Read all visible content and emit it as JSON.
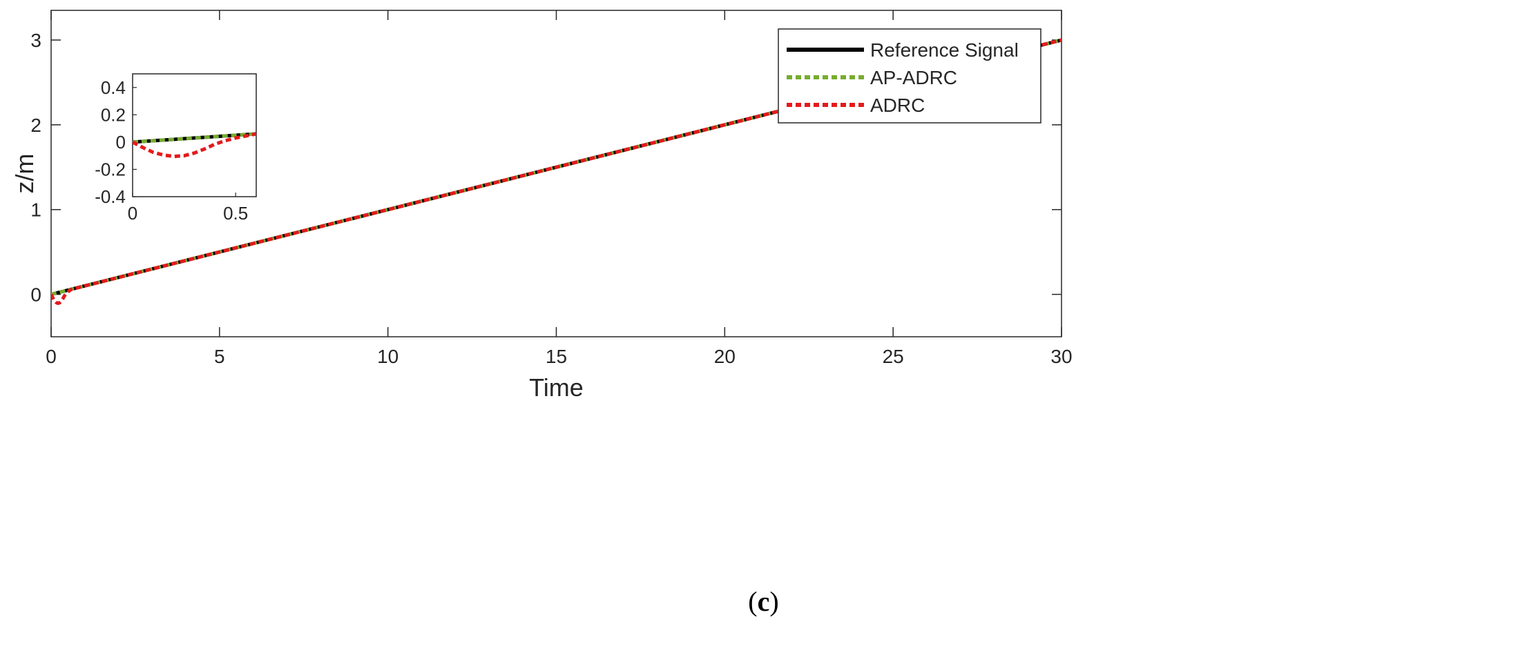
{
  "chart_data": [
    {
      "type": "line",
      "title": "",
      "xlabel": "Time",
      "ylabel": "z/m",
      "xlim": [
        0,
        30
      ],
      "ylim": [
        -0.5,
        3.35
      ],
      "xticks": [
        0,
        5,
        10,
        15,
        20,
        25,
        30
      ],
      "yticks": [
        0,
        1,
        2,
        3
      ],
      "grid": false,
      "legend_position": "top-right",
      "series": [
        {
          "name": "Reference Signal",
          "color": "#000000",
          "style": "solid",
          "x": [
            0,
            30
          ],
          "y": [
            0,
            3
          ]
        },
        {
          "name": "AP-ADRC",
          "color": "#77AC30",
          "style": "dotted",
          "x": [
            0,
            30
          ],
          "y": [
            0,
            3
          ]
        },
        {
          "name": "ADRC",
          "color": "#E41A1C",
          "style": "dotted",
          "x": [
            0,
            0.05,
            0.1,
            0.15,
            0.2,
            0.25,
            0.3,
            0.35,
            0.4,
            0.45,
            0.5,
            0.55,
            0.6,
            1,
            30
          ],
          "y": [
            0,
            -0.04,
            -0.075,
            -0.095,
            -0.105,
            -0.1,
            -0.08,
            -0.05,
            -0.015,
            0.01,
            0.03,
            0.045,
            0.06,
            0.1,
            3
          ]
        }
      ]
    },
    {
      "type": "line",
      "title": "",
      "xlabel": "",
      "ylabel": "",
      "xlim": [
        0,
        0.6
      ],
      "ylim": [
        -0.4,
        0.5
      ],
      "xticks": [
        0,
        0.5
      ],
      "yticks": [
        -0.4,
        -0.2,
        0,
        0.2,
        0.4
      ],
      "grid": false,
      "series": [
        {
          "name": "Reference Signal",
          "color": "#000000",
          "style": "solid",
          "x": [
            0,
            0.6
          ],
          "y": [
            0,
            0.06
          ]
        },
        {
          "name": "AP-ADRC",
          "color": "#77AC30",
          "style": "dotted",
          "x": [
            0,
            0.6
          ],
          "y": [
            0,
            0.06
          ]
        },
        {
          "name": "ADRC",
          "color": "#E41A1C",
          "style": "dotted",
          "x": [
            0,
            0.05,
            0.1,
            0.15,
            0.2,
            0.25,
            0.3,
            0.35,
            0.4,
            0.45,
            0.5,
            0.55,
            0.6
          ],
          "y": [
            0,
            -0.04,
            -0.075,
            -0.095,
            -0.105,
            -0.1,
            -0.08,
            -0.05,
            -0.015,
            0.01,
            0.03,
            0.045,
            0.06
          ]
        }
      ]
    }
  ],
  "caption": {
    "open": "(",
    "letter": "c",
    "close": ")"
  }
}
